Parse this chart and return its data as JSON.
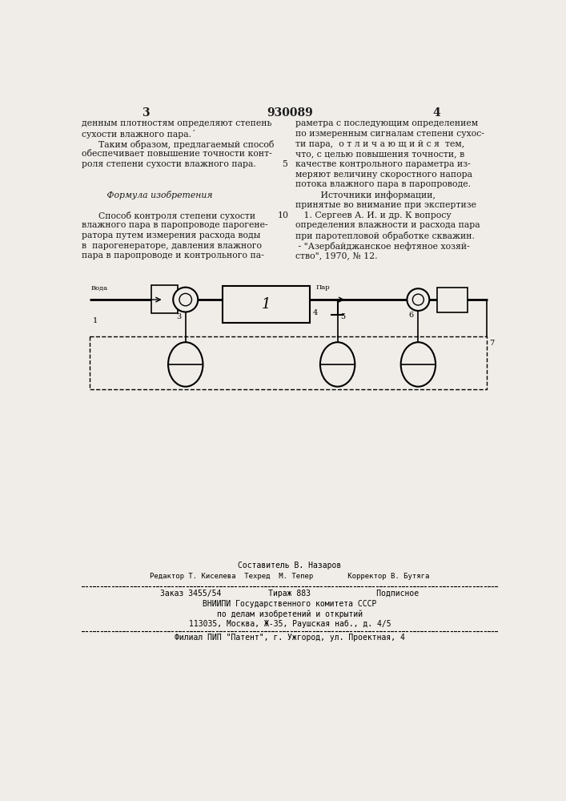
{
  "bg_color": "#f0ede8",
  "text_color": "#1a1a1a",
  "page_header": {
    "left_num": "3",
    "center_num": "930089",
    "right_num": "4"
  },
  "left_col_text": [
    "денным плотностям определяют степень",
    "сухости влажного пара.´",
    "      Таким образом, предлагаемый способ",
    "обеспечивает повышение точности конт-",
    "роля степени сухости влажного пара.",
    "",
    "",
    "         Формула изобретения",
    "",
    "      Способ контроля степени сухости",
    "влажного пара в паропроводе парогене-",
    "ратора путем измерения расхода воды",
    "в  парогенераторе, давления влажного",
    "пара в паропроводе и контрольного па-"
  ],
  "right_col_text": [
    "раметра с последующим определением",
    "по измеренным сигналам степени сухос-",
    "ти пара,  о т л и ч а ю щ и й с я  тем,",
    "что, с целью повышения точности, в",
    "качестве контрольного параметра из-",
    "меряют величину скоростного напора",
    "потока влажного пара в паропроводе.",
    "         Источники информации,",
    "принятые во внимание при экспертизе",
    "   1. Сергеев А. И. и др. К вопросу",
    "определения влажности и расхода пара",
    "при паротепловой обработке скважин.",
    " - \"Азербайджанское нефтяное хозяй-",
    "ство\", 1970, № 12."
  ],
  "footer": {
    "line1": "Составитель В. Назаров",
    "line2": "Редактор Т. Киселева  Техред  М. Тепер        Корректор В. Бутяга",
    "line3": "Заказ 3455/54          Тираж 883              Подписное",
    "line4": "ВНИИПИ Государственного комитета СССР",
    "line5": "по делам изобретений и открытий",
    "line6": "113035, Москва, Ж-35, Раушская наб., д. 4/5",
    "line7": "Филиал ПИП \"Патент\", г. Ужгород, ул. Проектная, 4"
  }
}
